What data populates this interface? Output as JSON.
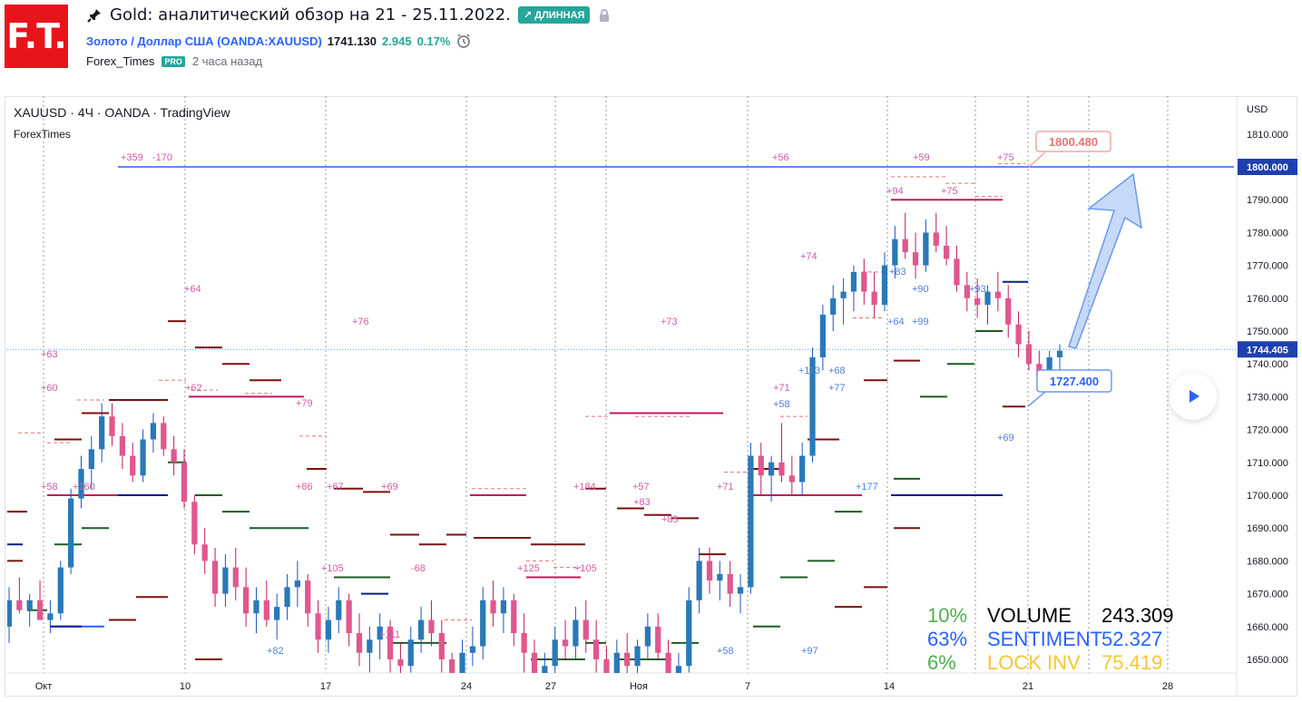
{
  "header": {
    "logo_text": "F.T.",
    "title": "Gold: аналитический обзор на 21 - 25.11.2022.",
    "badge": "↗ ДЛИННАЯ",
    "symbol_name": "Золото / Доллар США (OANDA:XAUUSD)",
    "price": "1741.130",
    "change": "2.945",
    "change_pct": "0.17%",
    "author": "Forex_Times",
    "author_badge": "PRO",
    "time_ago": "2 часа назад",
    "icons": [
      "pin-icon",
      "lock-icon",
      "alarm-clock-icon"
    ]
  },
  "chart_data": {
    "type": "candlestick",
    "title": "XAUUSD · 4Ч · OANDA · TradingView",
    "subtitle": "ForexTimes",
    "currency": "USD",
    "ylim": [
      1645,
      1820
    ],
    "y_ticks": [
      "1810.000",
      "1800.000",
      "1790.000",
      "1780.000",
      "1770.000",
      "1760.000",
      "1750.000",
      "1740.000",
      "1730.000",
      "1720.000",
      "1710.000",
      "1700.000",
      "1690.000",
      "1680.000",
      "1670.000",
      "1660.000",
      "1650.000"
    ],
    "x_ticks": [
      "Окт",
      "10",
      "17",
      "24",
      "27",
      "Ноя",
      "7",
      "14",
      "21",
      "28"
    ],
    "price_labels": {
      "level": "1800.000",
      "current": "1744.405"
    },
    "callouts": [
      {
        "text": "1800.480",
        "price": 1800.48,
        "color": "#e57373"
      },
      {
        "text": "1727.400",
        "price": 1727.4,
        "color": "#2962ff"
      }
    ],
    "annotations": [
      "+359",
      "-170",
      "+56",
      "+59",
      "+75",
      "+94",
      "+75",
      "+64",
      "+76",
      "+73",
      "+74",
      "+63",
      "+60",
      "+62",
      "+79",
      "+58",
      "+160",
      "+86",
      "+67",
      "+69",
      "+184",
      "+57",
      "+83",
      "+85",
      "+71",
      "+58",
      "+71",
      "+113",
      "+68",
      "+77",
      "+177",
      "+69",
      "+83",
      "+90",
      "+93",
      "+64",
      "+99",
      "+105",
      "-68",
      "+125",
      "+105",
      "+111",
      "+82",
      "+58",
      "+97"
    ],
    "candles": [
      [
        1660,
        1672,
        1655,
        1668
      ],
      [
        1668,
        1675,
        1664,
        1665
      ],
      [
        1665,
        1670,
        1660,
        1668
      ],
      [
        1668,
        1674,
        1663,
        1662
      ],
      [
        1662,
        1668,
        1658,
        1664
      ],
      [
        1664,
        1680,
        1662,
        1678
      ],
      [
        1678,
        1702,
        1676,
        1699
      ],
      [
        1699,
        1712,
        1696,
        1708
      ],
      [
        1708,
        1718,
        1702,
        1714
      ],
      [
        1714,
        1728,
        1710,
        1724
      ],
      [
        1724,
        1728,
        1715,
        1718
      ],
      [
        1718,
        1722,
        1708,
        1712
      ],
      [
        1712,
        1716,
        1704,
        1706
      ],
      [
        1706,
        1720,
        1704,
        1717
      ],
      [
        1717,
        1725,
        1713,
        1722
      ],
      [
        1722,
        1724,
        1712,
        1714
      ],
      [
        1714,
        1718,
        1706,
        1710
      ],
      [
        1710,
        1714,
        1696,
        1698
      ],
      [
        1698,
        1700,
        1682,
        1685
      ],
      [
        1685,
        1690,
        1676,
        1680
      ],
      [
        1680,
        1684,
        1666,
        1670
      ],
      [
        1670,
        1682,
        1666,
        1678
      ],
      [
        1678,
        1684,
        1668,
        1672
      ],
      [
        1672,
        1678,
        1660,
        1664
      ],
      [
        1664,
        1672,
        1658,
        1668
      ],
      [
        1668,
        1674,
        1660,
        1662
      ],
      [
        1662,
        1670,
        1656,
        1666
      ],
      [
        1666,
        1676,
        1662,
        1672
      ],
      [
        1672,
        1680,
        1666,
        1674
      ],
      [
        1674,
        1676,
        1660,
        1664
      ],
      [
        1664,
        1668,
        1652,
        1656
      ],
      [
        1656,
        1666,
        1652,
        1662
      ],
      [
        1662,
        1672,
        1658,
        1668
      ],
      [
        1668,
        1670,
        1654,
        1658
      ],
      [
        1658,
        1664,
        1648,
        1652
      ],
      [
        1652,
        1660,
        1646,
        1656
      ],
      [
        1656,
        1664,
        1650,
        1660
      ],
      [
        1660,
        1662,
        1646,
        1650
      ],
      [
        1650,
        1655,
        1642,
        1648
      ],
      [
        1648,
        1660,
        1646,
        1656
      ],
      [
        1656,
        1666,
        1652,
        1662
      ],
      [
        1662,
        1668,
        1654,
        1658
      ],
      [
        1658,
        1662,
        1646,
        1650
      ],
      [
        1650,
        1652,
        1640,
        1644
      ],
      [
        1644,
        1656,
        1640,
        1652
      ],
      [
        1652,
        1660,
        1648,
        1654
      ],
      [
        1654,
        1672,
        1650,
        1668
      ],
      [
        1668,
        1674,
        1660,
        1664
      ],
      [
        1664,
        1672,
        1658,
        1668
      ],
      [
        1668,
        1670,
        1654,
        1658
      ],
      [
        1658,
        1664,
        1646,
        1652
      ],
      [
        1652,
        1656,
        1640,
        1644
      ],
      [
        1644,
        1652,
        1640,
        1648
      ],
      [
        1648,
        1660,
        1645,
        1656
      ],
      [
        1656,
        1662,
        1650,
        1654
      ],
      [
        1654,
        1666,
        1650,
        1662
      ],
      [
        1662,
        1668,
        1652,
        1656
      ],
      [
        1656,
        1662,
        1646,
        1650
      ],
      [
        1650,
        1654,
        1640,
        1644
      ],
      [
        1644,
        1656,
        1640,
        1652
      ],
      [
        1652,
        1658,
        1644,
        1648
      ],
      [
        1648,
        1656,
        1642,
        1654
      ],
      [
        1654,
        1664,
        1650,
        1660
      ],
      [
        1660,
        1664,
        1650,
        1652
      ],
      [
        1652,
        1656,
        1640,
        1644
      ],
      [
        1644,
        1652,
        1640,
        1648
      ],
      [
        1648,
        1672,
        1646,
        1668
      ],
      [
        1668,
        1684,
        1664,
        1680
      ],
      [
        1680,
        1684,
        1670,
        1674
      ],
      [
        1674,
        1680,
        1668,
        1676
      ],
      [
        1676,
        1680,
        1666,
        1670
      ],
      [
        1670,
        1676,
        1664,
        1672
      ],
      [
        1672,
        1716,
        1670,
        1712
      ],
      [
        1712,
        1716,
        1700,
        1706
      ],
      [
        1706,
        1712,
        1698,
        1710
      ],
      [
        1710,
        1722,
        1704,
        1706
      ],
      [
        1706,
        1712,
        1700,
        1704
      ],
      [
        1704,
        1716,
        1700,
        1712
      ],
      [
        1712,
        1745,
        1710,
        1742
      ],
      [
        1742,
        1758,
        1738,
        1755
      ],
      [
        1755,
        1764,
        1750,
        1760
      ],
      [
        1760,
        1766,
        1752,
        1762
      ],
      [
        1762,
        1770,
        1756,
        1768
      ],
      [
        1768,
        1772,
        1758,
        1762
      ],
      [
        1762,
        1768,
        1754,
        1758
      ],
      [
        1758,
        1774,
        1756,
        1770
      ],
      [
        1770,
        1782,
        1766,
        1778
      ],
      [
        1778,
        1786,
        1772,
        1774
      ],
      [
        1774,
        1780,
        1766,
        1770
      ],
      [
        1770,
        1784,
        1768,
        1780
      ],
      [
        1780,
        1786,
        1774,
        1776
      ],
      [
        1776,
        1782,
        1770,
        1772
      ],
      [
        1772,
        1776,
        1762,
        1764
      ],
      [
        1764,
        1768,
        1756,
        1760
      ],
      [
        1760,
        1766,
        1754,
        1758
      ],
      [
        1758,
        1764,
        1752,
        1762
      ],
      [
        1762,
        1768,
        1756,
        1760
      ],
      [
        1760,
        1764,
        1748,
        1752
      ],
      [
        1752,
        1756,
        1742,
        1746
      ],
      [
        1746,
        1750,
        1738,
        1740
      ],
      [
        1740,
        1744,
        1734,
        1736
      ],
      [
        1736,
        1744,
        1734,
        1742
      ],
      [
        1742,
        1746,
        1736,
        1744
      ]
    ],
    "levels": [
      {
        "price": 1800,
        "x0": 130,
        "x1": 1360,
        "color": "#2962ff",
        "width": 1.5
      },
      {
        "price": 1790,
        "x0": 982,
        "x1": 1105,
        "color": "#c2185b",
        "width": 2
      },
      {
        "price": 1730,
        "x0": 208,
        "x1": 335,
        "color": "#c2185b",
        "width": 2
      },
      {
        "price": 1725,
        "x0": 672,
        "x1": 797,
        "color": "#c2185b",
        "width": 2
      },
      {
        "price": 1700,
        "x0": 52,
        "x1": 180,
        "color": "#c2185b",
        "width": 2
      },
      {
        "price": 1700,
        "x0": 518,
        "x1": 580,
        "color": "#c2185b",
        "width": 2
      },
      {
        "price": 1700,
        "x0": 826,
        "x1": 950,
        "color": "#c2185b",
        "width": 2
      },
      {
        "price": 1700,
        "x0": 982,
        "x1": 1105,
        "color": "#0d1b8a",
        "width": 2
      },
      {
        "price": 1675,
        "x0": 580,
        "x1": 640,
        "color": "#c2185b",
        "width": 2
      },
      {
        "price": 1660,
        "x0": 55,
        "x1": 115,
        "color": "#2962ff",
        "width": 2
      }
    ],
    "legend_stats": [
      {
        "pct": "10%",
        "label": "VOLUME",
        "value": "243.309",
        "pct_color": "#4caf50",
        "label_color": "#000000",
        "value_color": "#000000"
      },
      {
        "pct": "63%",
        "label": "SENTIMENT",
        "value": "52.327",
        "pct_color": "#2962ff",
        "label_color": "#2962ff",
        "value_color": "#2962ff"
      },
      {
        "pct": "6%",
        "label": "LOCK INV",
        "value": "75.419",
        "pct_color": "#4caf50",
        "label_color": "#f9c631",
        "value_color": "#f9c631"
      }
    ]
  }
}
